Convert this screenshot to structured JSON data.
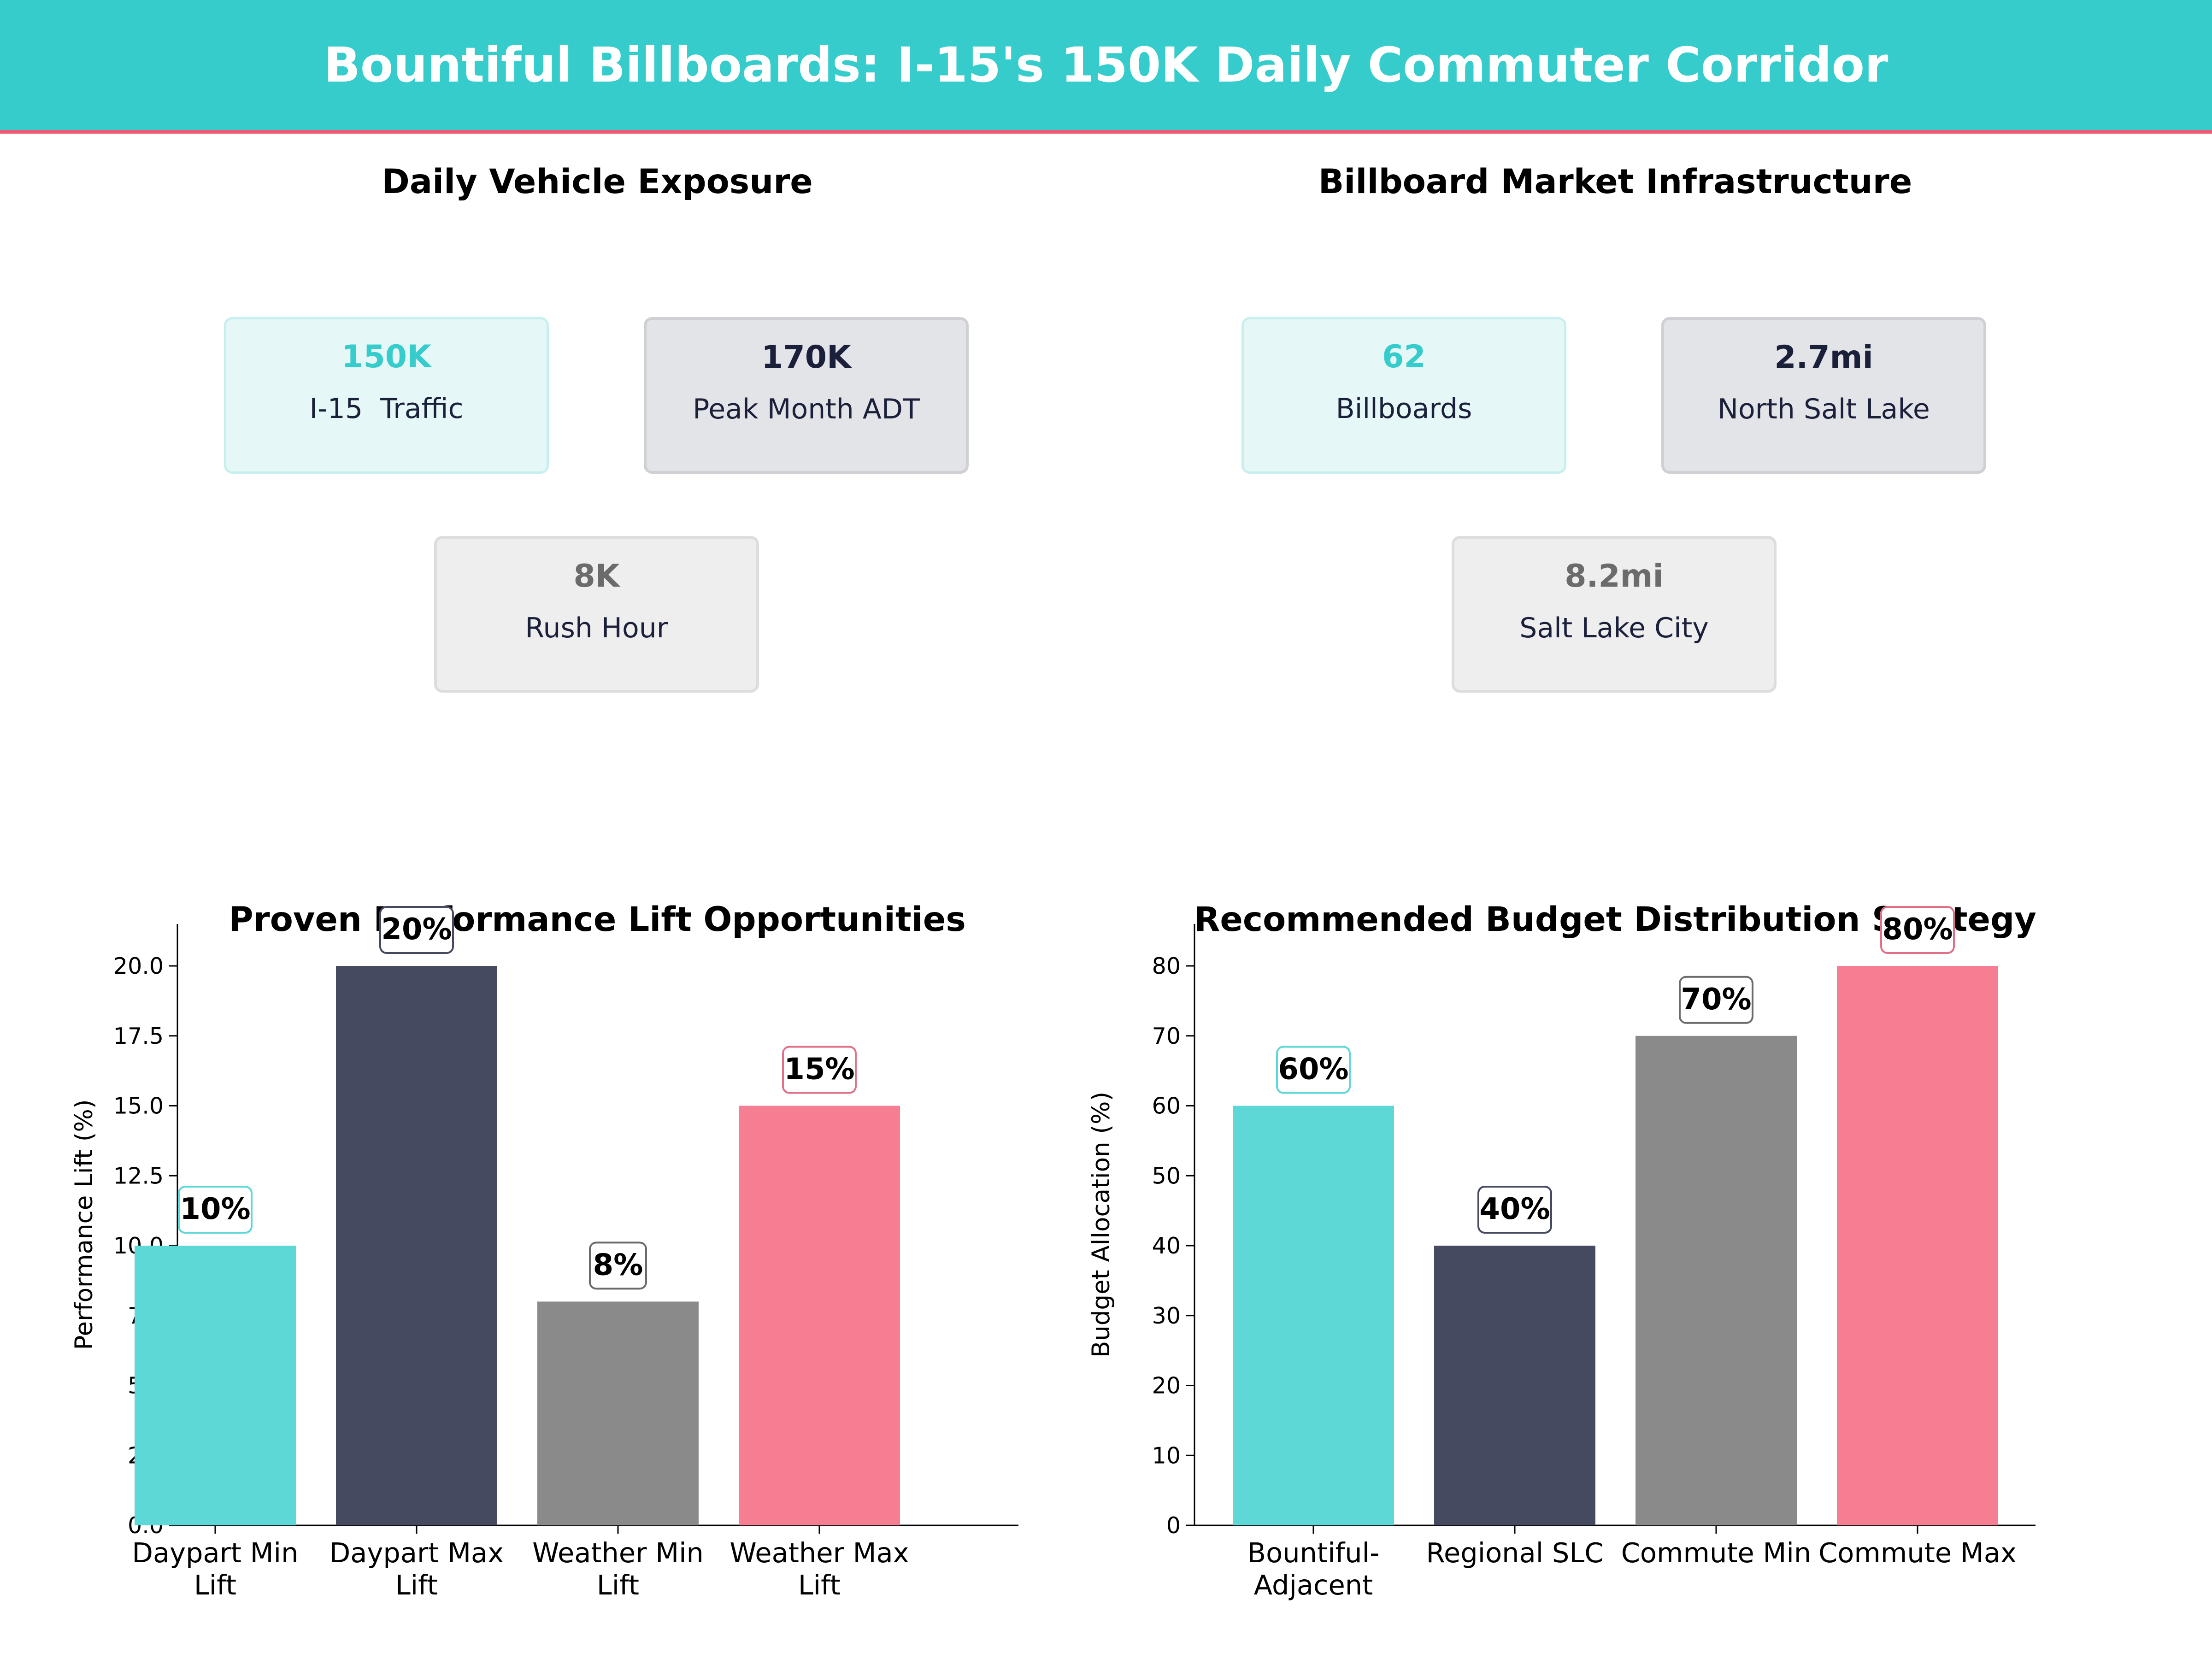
{
  "header": {
    "title": "Bountiful Billboards: I-15's 150K Daily Commuter Corridor",
    "background": "#36CCCC",
    "accent_line": "#F05A78"
  },
  "exposure": {
    "title": "Daily Vehicle Exposure",
    "cards": [
      {
        "value": "150K",
        "label": "I-15  Traffic",
        "style": "teal"
      },
      {
        "value": "170K",
        "label": "Peak Month ADT",
        "style": "navy"
      },
      {
        "value": "8K",
        "label": "Rush Hour",
        "style": "gray"
      }
    ]
  },
  "infrastructure": {
    "title": "Billboard Market Infrastructure",
    "cards": [
      {
        "value": "62",
        "label": "Billboards",
        "style": "teal"
      },
      {
        "value": "2.7mi",
        "label": "North Salt Lake",
        "style": "navy"
      },
      {
        "value": "8.2mi",
        "label": "Salt Lake City",
        "style": "gray"
      }
    ]
  },
  "chart_data": [
    {
      "type": "bar",
      "title": "Proven Performance Lift Opportunities",
      "xlabel": "",
      "ylabel": "Performance Lift (%)",
      "categories": [
        "Daypart Min\nLift",
        "Daypart Max\nLift",
        "Weather Min\nLift",
        "Weather Max\nLift"
      ],
      "values": [
        10,
        20,
        8,
        15
      ],
      "data_labels": [
        "10%",
        "20%",
        "8%",
        "15%"
      ],
      "colors": [
        "#5DD8D6",
        "#464A60",
        "#8A8A8A",
        "#F57E92"
      ],
      "label_borders": [
        "#5DD8D6",
        "#464A60",
        "#6b6b6b",
        "#E07088"
      ],
      "ylim": [
        0,
        21.5
      ],
      "yticks": [
        "0.0",
        "2.5",
        "5.0",
        "7.5",
        "10.0",
        "12.5",
        "15.0",
        "17.5",
        "20.0"
      ],
      "ytick_values": [
        0,
        2.5,
        5,
        7.5,
        10,
        12.5,
        15,
        17.5,
        20
      ],
      "grid": false,
      "legend": "none"
    },
    {
      "type": "bar",
      "title": "Recommended Budget Distribution Strategy",
      "xlabel": "",
      "ylabel": "Budget Allocation (%)",
      "categories": [
        "Bountiful-\nAdjacent",
        "Regional SLC",
        "Commute Min",
        "Commute Max"
      ],
      "values": [
        60,
        40,
        70,
        80
      ],
      "data_labels": [
        "60%",
        "40%",
        "70%",
        "80%"
      ],
      "colors": [
        "#5DD8D6",
        "#464A60",
        "#8A8A8A",
        "#F57E92"
      ],
      "label_borders": [
        "#5DD8D6",
        "#464A60",
        "#6b6b6b",
        "#E07088"
      ],
      "ylim": [
        0,
        86
      ],
      "yticks": [
        "0",
        "10",
        "20",
        "30",
        "40",
        "50",
        "60",
        "70",
        "80"
      ],
      "ytick_values": [
        0,
        10,
        20,
        30,
        40,
        50,
        60,
        70,
        80
      ],
      "grid": false,
      "legend": "none"
    }
  ]
}
